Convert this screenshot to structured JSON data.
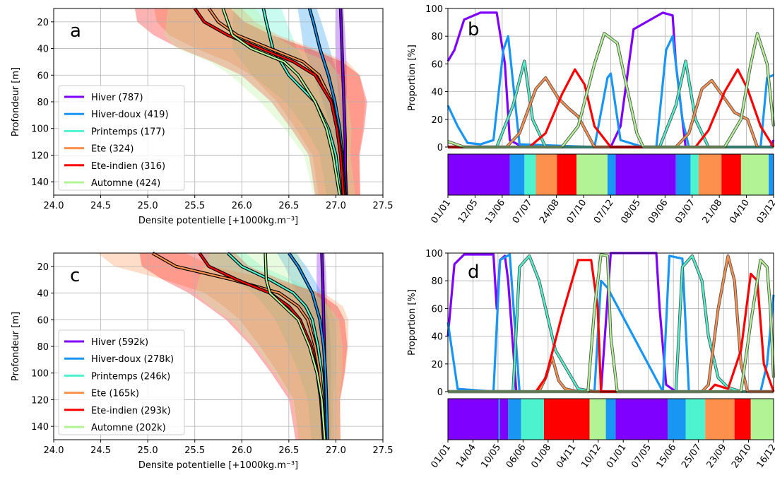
{
  "seasons": [
    {
      "key": "hiver",
      "name": "Hiver",
      "color": "#7f00ff"
    },
    {
      "key": "hiverdoux",
      "name": "Hiver-doux",
      "color": "#1996f3"
    },
    {
      "key": "printemps",
      "name": "Printemps",
      "color": "#4df3ce"
    },
    {
      "key": "ete",
      "name": "Ete",
      "color": "#fe904d"
    },
    {
      "key": "eteindien",
      "name": "Ete-indien",
      "color": "#ff0000"
    },
    {
      "key": "automne",
      "name": "Automne",
      "color": "#b2f396"
    }
  ],
  "chart_data": [
    {
      "panel": "a",
      "type": "line",
      "xlabel": "Densite potentielle [+1000kg.m⁻³]",
      "ylabel": "Profondeur [m]",
      "xlim": [
        24.0,
        27.5
      ],
      "ylim": [
        150,
        10
      ],
      "xticks": [
        "24.0",
        "24.5",
        "25.0",
        "25.5",
        "26.0",
        "26.5",
        "27.0",
        "27.5"
      ],
      "yticks": [
        "20",
        "40",
        "60",
        "80",
        "100",
        "120",
        "140"
      ],
      "legend_position": "lower left",
      "grid": true,
      "legend_labels": [
        "Hiver (787)",
        "Hiver-doux (419)",
        "Printemps (177)",
        "Ete (324)",
        "Ete-indien (316)",
        "Automne (424)"
      ],
      "series": [
        {
          "name": "Hiver (787)",
          "depth": [
            10,
            30,
            50,
            70,
            90,
            110,
            130,
            150
          ],
          "density": [
            27.05,
            27.06,
            27.07,
            27.08,
            27.09,
            27.1,
            27.1,
            27.11
          ]
        },
        {
          "name": "Hiver-doux (419)",
          "depth": [
            10,
            20,
            40,
            60,
            80,
            100,
            120,
            150
          ],
          "density": [
            26.72,
            26.76,
            26.83,
            26.92,
            26.99,
            27.04,
            27.07,
            27.1
          ]
        },
        {
          "name": "Printemps (177)",
          "depth": [
            10,
            20,
            40,
            60,
            80,
            100,
            120,
            150
          ],
          "density": [
            26.23,
            26.26,
            26.33,
            26.5,
            26.78,
            26.92,
            27.0,
            27.05
          ]
        },
        {
          "name": "Ete (324)",
          "depth": [
            10,
            20,
            30,
            40,
            50,
            60,
            80,
            100,
            120,
            150
          ],
          "density": [
            25.65,
            25.75,
            25.95,
            26.3,
            26.65,
            26.82,
            26.96,
            27.02,
            27.06,
            27.09
          ]
        },
        {
          "name": "Ete-indien (316)",
          "depth": [
            10,
            20,
            30,
            40,
            50,
            60,
            80,
            100,
            120,
            150
          ],
          "density": [
            25.5,
            25.6,
            25.85,
            26.2,
            26.55,
            26.78,
            26.95,
            27.01,
            27.05,
            27.08
          ]
        },
        {
          "name": "Automne (424)",
          "depth": [
            10,
            30,
            40,
            50,
            60,
            80,
            100,
            120,
            150
          ],
          "density": [
            25.8,
            25.9,
            26.1,
            26.45,
            26.6,
            26.78,
            26.9,
            26.97,
            27.04
          ]
        }
      ]
    },
    {
      "panel": "b",
      "type": "line",
      "ylabel": "Proportion [%]",
      "ylim": [
        0,
        100
      ],
      "yticks": [
        "0",
        "20",
        "40",
        "60",
        "80",
        "100"
      ],
      "xticks": [
        "01/01",
        "12/05",
        "13/06",
        "07/07",
        "24/08",
        "07/10",
        "07/12",
        "08/05",
        "09/06",
        "03/07",
        "21/08",
        "04/10",
        "03/12"
      ],
      "series": [
        {
          "name": "Hiver",
          "x": [
            0,
            0.02,
            0.05,
            0.1,
            0.15,
            0.175,
            0.19,
            0.23,
            0.5,
            0.53,
            0.57,
            0.66,
            0.69,
            0.7,
            0.73,
            0.99,
            1.0
          ],
          "y": [
            62,
            70,
            92,
            97,
            97,
            60,
            5,
            0,
            0,
            15,
            85,
            97,
            95,
            60,
            0,
            0,
            5
          ]
        },
        {
          "name": "Hiver-doux",
          "x": [
            0,
            0.03,
            0.06,
            0.1,
            0.14,
            0.17,
            0.185,
            0.22,
            0.45,
            0.49,
            0.5,
            0.53,
            0.6,
            0.64,
            0.67,
            0.69,
            0.72,
            0.74,
            0.96,
            0.98,
            1.0
          ],
          "y": [
            30,
            15,
            3,
            2,
            5,
            70,
            80,
            2,
            0,
            50,
            53,
            5,
            0,
            0,
            70,
            80,
            20,
            0,
            0,
            50,
            52
          ]
        },
        {
          "name": "Printemps",
          "x": [
            0,
            0.15,
            0.2,
            0.235,
            0.26,
            0.3,
            0.45,
            0.65,
            0.7,
            0.73,
            0.76,
            0.8,
            0.95,
            1.0
          ],
          "y": [
            0,
            0,
            30,
            62,
            20,
            0,
            0,
            0,
            30,
            62,
            20,
            0,
            0,
            0
          ]
        },
        {
          "name": "Ete",
          "x": [
            0,
            0.18,
            0.22,
            0.27,
            0.3,
            0.34,
            0.37,
            0.4,
            0.45,
            0.7,
            0.74,
            0.78,
            0.81,
            0.85,
            0.88,
            0.92,
            0.95
          ],
          "y": [
            0,
            0,
            10,
            42,
            50,
            35,
            28,
            22,
            0,
            0,
            10,
            42,
            48,
            35,
            25,
            20,
            0
          ]
        },
        {
          "name": "Ete-indien",
          "x": [
            0,
            0.25,
            0.3,
            0.35,
            0.39,
            0.42,
            0.45,
            0.5,
            0.76,
            0.8,
            0.85,
            0.89,
            0.92,
            0.96,
            1.0
          ],
          "y": [
            0,
            0,
            10,
            38,
            56,
            45,
            15,
            0,
            0,
            12,
            40,
            56,
            42,
            15,
            0
          ]
        },
        {
          "name": "Automne",
          "x": [
            0,
            0.05,
            0.35,
            0.4,
            0.45,
            0.48,
            0.52,
            0.58,
            0.6,
            0.85,
            0.9,
            0.93,
            0.95,
            0.98,
            1.0
          ],
          "y": [
            4,
            0,
            0,
            15,
            60,
            82,
            75,
            10,
            0,
            0,
            20,
            60,
            82,
            60,
            15
          ]
        }
      ],
      "band": [
        {
          "season": "Hiver",
          "from": 0,
          "to": 0.19
        },
        {
          "season": "Hiver-doux",
          "from": 0.19,
          "to": 0.235
        },
        {
          "season": "Printemps",
          "from": 0.235,
          "to": 0.27
        },
        {
          "season": "Ete",
          "from": 0.27,
          "to": 0.335
        },
        {
          "season": "Ete-indien",
          "from": 0.335,
          "to": 0.395
        },
        {
          "season": "Automne",
          "from": 0.395,
          "to": 0.49
        },
        {
          "season": "Hiver-doux",
          "from": 0.49,
          "to": 0.515
        },
        {
          "season": "Hiver",
          "from": 0.515,
          "to": 0.7
        },
        {
          "season": "Hiver-doux",
          "from": 0.7,
          "to": 0.745
        },
        {
          "season": "Printemps",
          "from": 0.745,
          "to": 0.77
        },
        {
          "season": "Ete",
          "from": 0.77,
          "to": 0.84
        },
        {
          "season": "Ete-indien",
          "from": 0.84,
          "to": 0.9
        },
        {
          "season": "Automne",
          "from": 0.9,
          "to": 0.985
        },
        {
          "season": "Hiver-doux",
          "from": 0.985,
          "to": 1.0
        }
      ]
    },
    {
      "panel": "c",
      "type": "line",
      "xlabel": "Densite potentielle [+1000kg.m⁻³]",
      "ylabel": "Profondeur [m]",
      "xlim": [
        24.0,
        27.5
      ],
      "ylim": [
        150,
        10
      ],
      "xticks": [
        "24.0",
        "24.5",
        "25.0",
        "25.5",
        "26.0",
        "26.5",
        "27.0",
        "27.5"
      ],
      "yticks": [
        "20",
        "40",
        "60",
        "80",
        "100",
        "120",
        "140"
      ],
      "legend_position": "lower left",
      "grid": true,
      "legend_labels": [
        "Hiver (592k)",
        "Hiver-doux (278k)",
        "Printemps (246k)",
        "Ete (165k)",
        "Ete-indien (293k)",
        "Automne (202k)"
      ],
      "series": [
        {
          "name": "Hiver (592k)",
          "depth": [
            10,
            30,
            60,
            90,
            120,
            150
          ],
          "density": [
            26.85,
            26.86,
            26.87,
            26.88,
            26.89,
            26.9
          ]
        },
        {
          "name": "Hiver-doux (278k)",
          "depth": [
            10,
            20,
            40,
            60,
            80,
            100,
            120,
            150
          ],
          "density": [
            26.5,
            26.6,
            26.75,
            26.83,
            26.87,
            26.89,
            26.9,
            26.91
          ]
        },
        {
          "name": "Printemps (246k)",
          "depth": [
            10,
            20,
            30,
            40,
            50,
            60,
            80,
            100,
            120,
            150
          ],
          "density": [
            25.85,
            26.0,
            26.3,
            26.55,
            26.68,
            26.75,
            26.81,
            26.85,
            26.87,
            26.89
          ]
        },
        {
          "name": "Ete (165k)",
          "depth": [
            10,
            20,
            30,
            40,
            50,
            60,
            80,
            100,
            120,
            150
          ],
          "density": [
            25.05,
            25.3,
            25.9,
            26.4,
            26.6,
            26.7,
            26.78,
            26.83,
            26.86,
            26.88
          ]
        },
        {
          "name": "Ete-indien (293k)",
          "depth": [
            10,
            20,
            30,
            40,
            50,
            60,
            80,
            100,
            120,
            150
          ],
          "density": [
            25.55,
            25.65,
            25.95,
            26.3,
            26.5,
            26.62,
            26.74,
            26.8,
            26.84,
            26.87
          ]
        },
        {
          "name": "Automne (202k)",
          "depth": [
            10,
            30,
            40,
            50,
            60,
            80,
            100,
            120,
            150
          ],
          "density": [
            26.25,
            26.26,
            26.3,
            26.45,
            26.6,
            26.72,
            26.8,
            26.85,
            26.88
          ]
        }
      ]
    },
    {
      "panel": "d",
      "type": "line",
      "ylabel": "Proportion [%]",
      "ylim": [
        0,
        100
      ],
      "yticks": [
        "0",
        "20",
        "40",
        "60",
        "80",
        "100"
      ],
      "xticks": [
        "01/01",
        "14/04",
        "10/05",
        "06/06",
        "01/08",
        "04/11",
        "10/12",
        "01/01",
        "07/05",
        "15/06",
        "25/07",
        "23/09",
        "28/10",
        "16/12"
      ],
      "series": [
        {
          "name": "Hiver",
          "x": [
            0,
            0.02,
            0.05,
            0.1,
            0.14,
            0.15,
            0.16,
            0.175,
            0.185,
            0.21,
            0.47,
            0.5,
            0.55,
            0.64,
            0.65,
            0.67,
            0.7,
            0.98,
            1.0
          ],
          "y": [
            40,
            92,
            99,
            99,
            99,
            60,
            95,
            98,
            80,
            0,
            0,
            100,
            100,
            100,
            60,
            5,
            0,
            0,
            0
          ]
        },
        {
          "name": "Hiver-doux",
          "x": [
            0,
            0.03,
            0.14,
            0.16,
            0.19,
            0.22,
            0.45,
            0.47,
            0.49,
            0.66,
            0.68,
            0.72,
            0.74,
            0.96,
            0.98,
            1.0
          ],
          "y": [
            50,
            2,
            0,
            95,
            99,
            0,
            0,
            80,
            75,
            0,
            98,
            96,
            0,
            0,
            20,
            70
          ]
        },
        {
          "name": "Printemps",
          "x": [
            0,
            0.2,
            0.22,
            0.25,
            0.28,
            0.3,
            0.33,
            0.4,
            0.45,
            0.7,
            0.72,
            0.75,
            0.78,
            0.8,
            0.83,
            0.86,
            0.9,
            1.0
          ],
          "y": [
            0,
            0,
            90,
            98,
            80,
            60,
            30,
            2,
            0,
            0,
            90,
            98,
            80,
            40,
            10,
            3,
            0,
            0
          ]
        },
        {
          "name": "Ete",
          "x": [
            0,
            0.28,
            0.3,
            0.32,
            0.34,
            0.36,
            0.4,
            0.78,
            0.8,
            0.83,
            0.86,
            0.88,
            0.9,
            0.92,
            1.0
          ],
          "y": [
            0,
            0,
            10,
            25,
            8,
            2,
            0,
            0,
            5,
            60,
            98,
            80,
            20,
            0,
            0
          ]
        },
        {
          "name": "Ete-indien",
          "x": [
            0,
            0.27,
            0.3,
            0.35,
            0.4,
            0.44,
            0.46,
            0.47,
            0.8,
            0.82,
            0.86,
            0.9,
            0.93,
            0.95,
            0.97,
            1.0
          ],
          "y": [
            0,
            0,
            10,
            55,
            95,
            95,
            60,
            0,
            0,
            5,
            2,
            30,
            85,
            80,
            20,
            0
          ]
        },
        {
          "name": "Automne",
          "x": [
            0,
            0.43,
            0.45,
            0.47,
            0.49,
            0.5,
            0.52,
            0.9,
            0.93,
            0.96,
            0.98,
            0.99,
            1.0
          ],
          "y": [
            0,
            0,
            60,
            99,
            98,
            40,
            0,
            0,
            50,
            95,
            90,
            60,
            10
          ]
        }
      ],
      "band": [
        {
          "season": "Hiver",
          "from": 0,
          "to": 0.155
        },
        {
          "season": "Hiver-doux",
          "from": 0.155,
          "to": 0.16
        },
        {
          "season": "Hiver",
          "from": 0.16,
          "to": 0.185
        },
        {
          "season": "Hiver-doux",
          "from": 0.185,
          "to": 0.225
        },
        {
          "season": "Printemps",
          "from": 0.225,
          "to": 0.295
        },
        {
          "season": "Ete-indien",
          "from": 0.295,
          "to": 0.435
        },
        {
          "season": "Automne",
          "from": 0.435,
          "to": 0.485
        },
        {
          "season": "Hiver-doux",
          "from": 0.485,
          "to": 0.515
        },
        {
          "season": "Hiver",
          "from": 0.515,
          "to": 0.675
        },
        {
          "season": "Hiver-doux",
          "from": 0.675,
          "to": 0.73
        },
        {
          "season": "Printemps",
          "from": 0.73,
          "to": 0.79
        },
        {
          "season": "Ete",
          "from": 0.79,
          "to": 0.88
        },
        {
          "season": "Ete-indien",
          "from": 0.88,
          "to": 0.93
        },
        {
          "season": "Automne",
          "from": 0.93,
          "to": 1.0
        }
      ]
    }
  ]
}
